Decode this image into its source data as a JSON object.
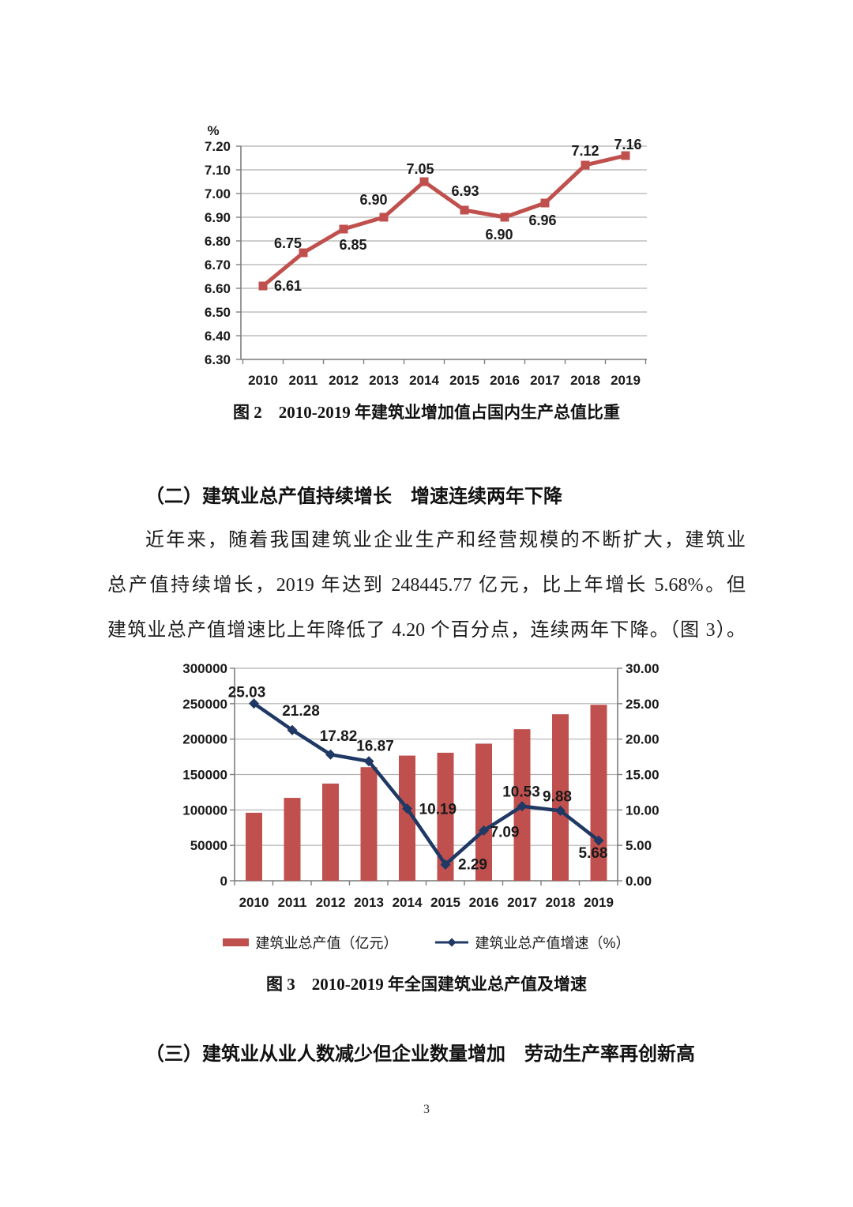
{
  "page": {
    "number": "3"
  },
  "figure2": {
    "caption": "图 2　2010-2019 年建筑业增加值占国内生产总值比重"
  },
  "section2": {
    "heading": "（二）建筑业总产值持续增长　增速连续两年下降",
    "paragraph_lines": [
      "近年来，随着我国建筑业企业生产和经营规模的不断扩大，建筑业",
      "总产值持续增长，2019 年达到 248445.77 亿元，比上年增长 5.68%。但",
      "建筑业总产值增速比上年降低了 4.20 个百分点，连续两年下降。（图 3）。"
    ]
  },
  "figure3": {
    "caption": "图 3　2010-2019 年全国建筑业总产值及增速",
    "legend": [
      {
        "label": "建筑业总产值（亿元）",
        "type": "bar",
        "color": "#c0504d"
      },
      {
        "label": "建筑业总产值增速（%）",
        "type": "line",
        "color": "#1f3864"
      }
    ]
  },
  "section3": {
    "heading": "（三）建筑业从业人数减少但企业数量增加　劳动生产率再创新高"
  },
  "colors": {
    "red": "#c0504d",
    "navy": "#1f3864",
    "grid": "#b0b0b0",
    "axis": "#7f7f7f",
    "chart_text": "#1a1a1a"
  },
  "chart_data": [
    {
      "id": "figure2",
      "type": "line",
      "title": "图 2　2010-2019 年建筑业增加值占国内生产总值比重",
      "unit_label": "%",
      "categories": [
        "2010",
        "2011",
        "2012",
        "2013",
        "2014",
        "2015",
        "2016",
        "2017",
        "2018",
        "2019"
      ],
      "values": [
        6.61,
        6.75,
        6.85,
        6.9,
        7.05,
        6.93,
        6.9,
        6.96,
        7.12,
        7.16
      ],
      "ylim": [
        6.3,
        7.2
      ],
      "ytick_step": 0.1,
      "grid": true,
      "legend_position": "none",
      "line_color": "#c0504d",
      "marker": "square",
      "label_offsets": [
        [
          14,
          6,
          "start"
        ],
        [
          -2,
          -6,
          "end"
        ],
        [
          12,
          26,
          "middle"
        ],
        [
          -13,
          -16,
          "middle"
        ],
        [
          -5,
          -10,
          "middle"
        ],
        [
          1,
          -18,
          "middle"
        ],
        [
          -7,
          28,
          "middle"
        ],
        [
          -3,
          28,
          "middle"
        ],
        [
          0,
          -12,
          "middle"
        ],
        [
          3,
          -8,
          "middle"
        ]
      ]
    },
    {
      "id": "figure3",
      "type": "bar+line",
      "title": "图 3　2010-2019 年全国建筑业总产值及增速",
      "categories": [
        "2010",
        "2011",
        "2012",
        "2013",
        "2014",
        "2015",
        "2016",
        "2017",
        "2018",
        "2019"
      ],
      "series": [
        {
          "name": "建筑业总产值（亿元）",
          "type": "bar",
          "axis": "left",
          "color": "#c0504d",
          "values": [
            96031,
            117060,
            137218,
            160366,
            176713,
            180757,
            193567,
            213954,
            235086,
            248445.77
          ]
        },
        {
          "name": "建筑业总产值增速（%）",
          "type": "line",
          "axis": "right",
          "color": "#1f3864",
          "marker": "diamond",
          "values": [
            25.03,
            21.28,
            17.82,
            16.87,
            10.19,
            2.29,
            7.09,
            10.53,
            9.88,
            5.68
          ],
          "label_offsets": [
            [
              -9,
              -8,
              "middle"
            ],
            [
              11,
              -18,
              "middle"
            ],
            [
              10,
              -17,
              "middle"
            ],
            [
              8,
              -13,
              "middle"
            ],
            [
              15,
              7,
              "start"
            ],
            [
              16,
              6,
              "start"
            ],
            [
              8,
              8,
              "start"
            ],
            [
              -1,
              -12,
              "middle"
            ],
            [
              -4,
              -12,
              "middle"
            ],
            [
              -7,
              22,
              "middle"
            ]
          ]
        }
      ],
      "left_ylim": [
        0,
        300000
      ],
      "left_tick_step": 50000,
      "right_ylim": [
        0,
        30
      ],
      "right_tick_step": 5,
      "grid": true,
      "legend_position": "bottom"
    }
  ]
}
